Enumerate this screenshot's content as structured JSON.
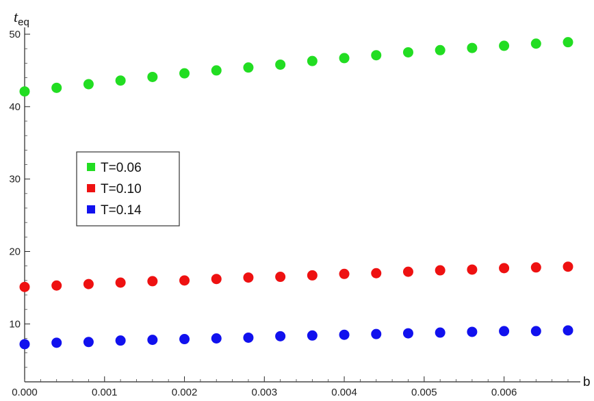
{
  "chart_data": {
    "type": "scatter",
    "ylabel_main": "t",
    "ylabel_sub": "eq",
    "xlabel": "b",
    "xlim": [
      0,
      0.0068
    ],
    "ylim": [
      2,
      50
    ],
    "xticks": [
      0.0,
      0.001,
      0.002,
      0.003,
      0.004,
      0.005,
      0.006
    ],
    "xtick_labels": [
      "0.000",
      "0.001",
      "0.002",
      "0.003",
      "0.004",
      "0.005",
      "0.006"
    ],
    "yticks": [
      10,
      20,
      30,
      40,
      50
    ],
    "ytick_labels": [
      "10",
      "20",
      "30",
      "40",
      "50"
    ],
    "grid": false,
    "legend_position": "center-left",
    "x": [
      0.0,
      0.0004,
      0.0008,
      0.0012,
      0.0016,
      0.002,
      0.0024,
      0.0028,
      0.0032,
      0.0036,
      0.004,
      0.0044,
      0.0048,
      0.0052,
      0.0056,
      0.006,
      0.0064,
      0.0068
    ],
    "series": [
      {
        "name": "T=0.06",
        "color": "#22dd22",
        "values": [
          42.1,
          42.6,
          43.1,
          43.6,
          44.1,
          44.6,
          45.0,
          45.4,
          45.8,
          46.3,
          46.7,
          47.1,
          47.5,
          47.8,
          48.1,
          48.4,
          48.7,
          48.9
        ]
      },
      {
        "name": "T=0.10",
        "color": "#ee1111",
        "values": [
          15.1,
          15.3,
          15.5,
          15.7,
          15.9,
          16.0,
          16.2,
          16.4,
          16.5,
          16.7,
          16.9,
          17.0,
          17.2,
          17.4,
          17.5,
          17.7,
          17.8,
          17.9
        ]
      },
      {
        "name": "T=0.14",
        "color": "#1111ee",
        "values": [
          7.2,
          7.4,
          7.5,
          7.7,
          7.8,
          7.9,
          8.0,
          8.1,
          8.3,
          8.4,
          8.5,
          8.6,
          8.7,
          8.8,
          8.9,
          9.0,
          9.0,
          9.1
        ]
      }
    ]
  }
}
